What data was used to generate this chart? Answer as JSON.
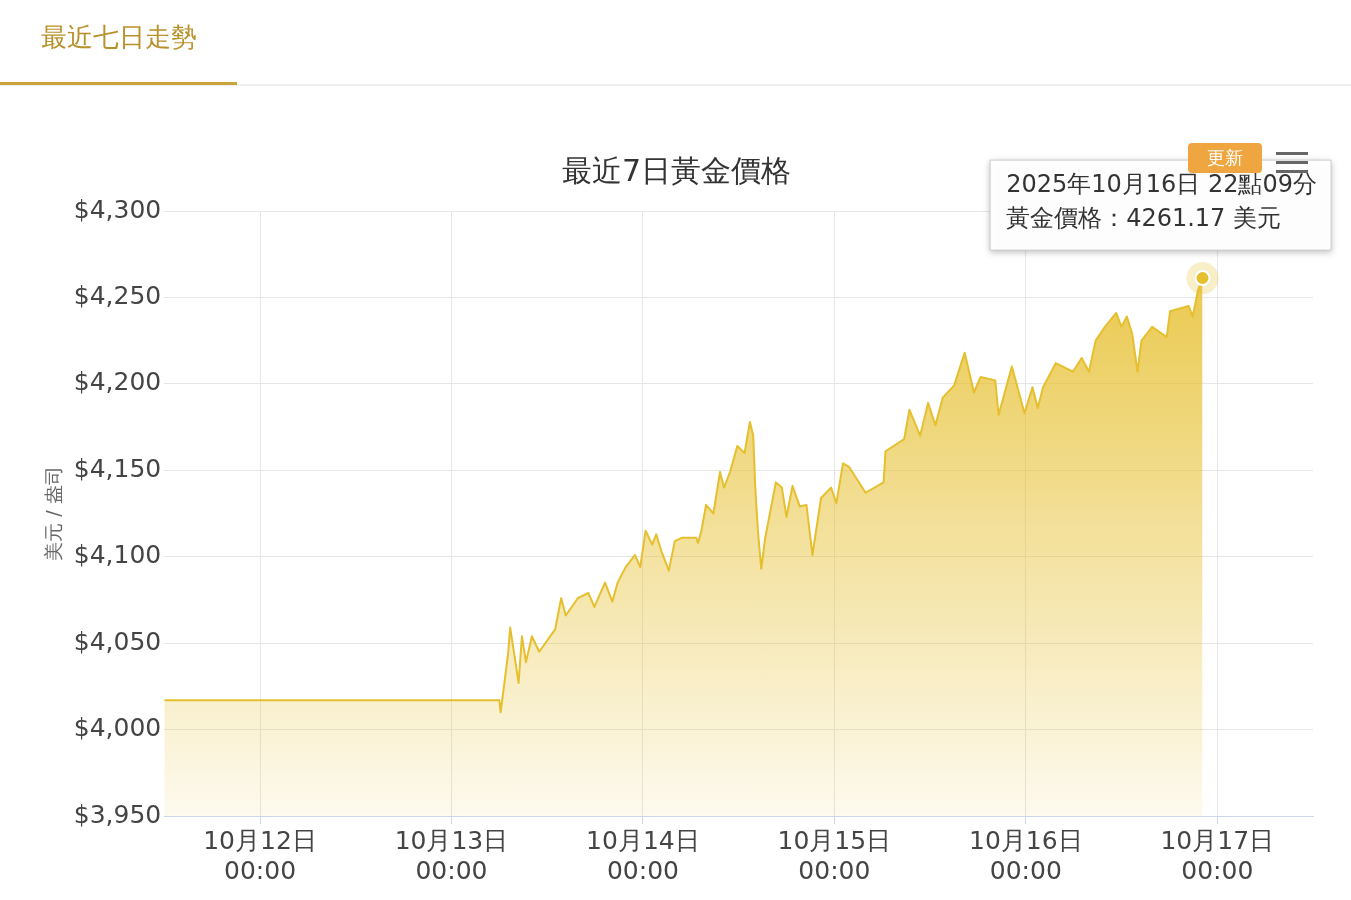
{
  "chart_data": {
    "type": "area",
    "title": "最近7日黃金價格",
    "subtitle": "最近七日走勢",
    "ylabel": "美元 / 盎司",
    "x": [
      "2025-10-11T12:00",
      "2025-10-13T06:00",
      "2025-10-13T06:10",
      "2025-10-13T07:06",
      "2025-10-13T07:22",
      "2025-10-13T08:25",
      "2025-10-13T08:50",
      "2025-10-13T09:20",
      "2025-10-13T10:05",
      "2025-10-13T11:00",
      "2025-10-13T13:00",
      "2025-10-13T13:45",
      "2025-10-13T14:20",
      "2025-10-13T15:50",
      "2025-10-13T17:10",
      "2025-10-13T17:55",
      "2025-10-13T19:15",
      "2025-10-13T20:10",
      "2025-10-13T20:50",
      "2025-10-13T21:50",
      "2025-10-13T23:00",
      "2025-10-13T23:40",
      "2025-10-14T00:20",
      "2025-10-14T01:10",
      "2025-10-14T01:40",
      "2025-10-14T02:20",
      "2025-10-14T03:15",
      "2025-10-14T04:00",
      "2025-10-14T04:55",
      "2025-10-14T06:40",
      "2025-10-14T06:55",
      "2025-10-14T07:20",
      "2025-10-14T07:55",
      "2025-10-14T08:50",
      "2025-10-14T09:40",
      "2025-10-14T10:10",
      "2025-10-14T10:55",
      "2025-10-14T11:50",
      "2025-10-14T12:45",
      "2025-10-14T13:25",
      "2025-10-14T13:50",
      "2025-10-14T14:05",
      "2025-10-14T14:25",
      "2025-10-14T14:50",
      "2025-10-14T15:20",
      "2025-10-14T16:40",
      "2025-10-14T17:25",
      "2025-10-14T18:00",
      "2025-10-14T18:45",
      "2025-10-14T19:40",
      "2025-10-14T20:30",
      "2025-10-14T21:15",
      "2025-10-14T22:20",
      "2025-10-14T23:35",
      "2025-10-15T00:15",
      "2025-10-15T01:05",
      "2025-10-15T01:50",
      "2025-10-15T03:55",
      "2025-10-15T06:10",
      "2025-10-15T06:25",
      "2025-10-15T08:45",
      "2025-10-15T09:25",
      "2025-10-15T10:45",
      "2025-10-15T11:45",
      "2025-10-15T12:40",
      "2025-10-15T13:35",
      "2025-10-15T15:00",
      "2025-10-15T16:20",
      "2025-10-15T17:30",
      "2025-10-15T18:20",
      "2025-10-15T20:10",
      "2025-10-15T20:35",
      "2025-10-15T22:15",
      "2025-10-15T23:50",
      "2025-10-16T00:50",
      "2025-10-16T01:30",
      "2025-10-16T02:10",
      "2025-10-16T03:45",
      "2025-10-16T05:55",
      "2025-10-16T07:00",
      "2025-10-16T07:55",
      "2025-10-16T08:45",
      "2025-10-16T09:55",
      "2025-10-16T11:20",
      "2025-10-16T12:00",
      "2025-10-16T12:40",
      "2025-10-16T13:20",
      "2025-10-16T14:00",
      "2025-10-16T14:30",
      "2025-10-16T15:50",
      "2025-10-16T17:40",
      "2025-10-16T18:05",
      "2025-10-16T20:25",
      "2025-10-16T20:55",
      "2025-10-16T21:35",
      "2025-10-16T22:09"
    ],
    "series": [
      {
        "color": "#e6bf2e",
        "values": [
          4017,
          4017,
          4010,
          4044,
          4059,
          4027,
          4054,
          4039,
          4054,
          4045,
          4058,
          4076,
          4066,
          4076,
          4079,
          4071,
          4085,
          4074,
          4085,
          4094,
          4101,
          4094,
          4115,
          4107,
          4113,
          4103,
          4092,
          4109,
          4111,
          4111,
          4108,
          4115,
          4130,
          4125,
          4149,
          4140,
          4149,
          4164,
          4160,
          4178,
          4170,
          4140,
          4115,
          4093,
          4111,
          4143,
          4140,
          4123,
          4141,
          4129,
          4130,
          4101,
          4134,
          4140,
          4131,
          4154,
          4152,
          4137,
          4143,
          4161,
          4168,
          4185,
          4170,
          4189,
          4176,
          4192,
          4199,
          4218,
          4195,
          4204,
          4202,
          4182,
          4210,
          4183,
          4198,
          4186,
          4198,
          4212,
          4207,
          4215,
          4207,
          4225,
          4233,
          4241,
          4233,
          4239,
          4229,
          4207,
          4225,
          4233,
          4227,
          4242,
          4245,
          4239,
          4254,
          4261.17
        ]
      }
    ],
    "xlim": [
      "2025-10-11T12:00",
      "2025-10-17T12:00"
    ],
    "xticks": [
      {
        "value": "2025-10-12",
        "label": "10月12日\n00:00"
      },
      {
        "value": "2025-10-13",
        "label": "10月13日\n00:00"
      },
      {
        "value": "2025-10-14",
        "label": "10月14日\n00:00"
      },
      {
        "value": "2025-10-15",
        "label": "10月15日\n00:00"
      },
      {
        "value": "2025-10-16",
        "label": "10月16日\n00:00"
      },
      {
        "value": "2025-10-17",
        "label": "10月17日\n00:00"
      }
    ],
    "ylim": [
      3950,
      4300
    ],
    "yticks": [
      {
        "value": 3950,
        "label": "$3,950"
      },
      {
        "value": 4000,
        "label": "$4,000"
      },
      {
        "value": 4050,
        "label": "$4,050"
      },
      {
        "value": 4100,
        "label": "$4,100"
      },
      {
        "value": 4150,
        "label": "$4,150"
      },
      {
        "value": 4200,
        "label": "$4,200"
      },
      {
        "value": 4250,
        "label": "$4,250"
      },
      {
        "value": 4300,
        "label": "$4,300"
      }
    ],
    "grid": true,
    "legend": false,
    "marker": "none",
    "annotations": [
      "更新",
      "2025年10月16日 22點09分",
      {
        "text": "黃金價格：4261.17 美元",
        "x": "2025-10-16T22:09",
        "y": 4261.17
      }
    ]
  }
}
